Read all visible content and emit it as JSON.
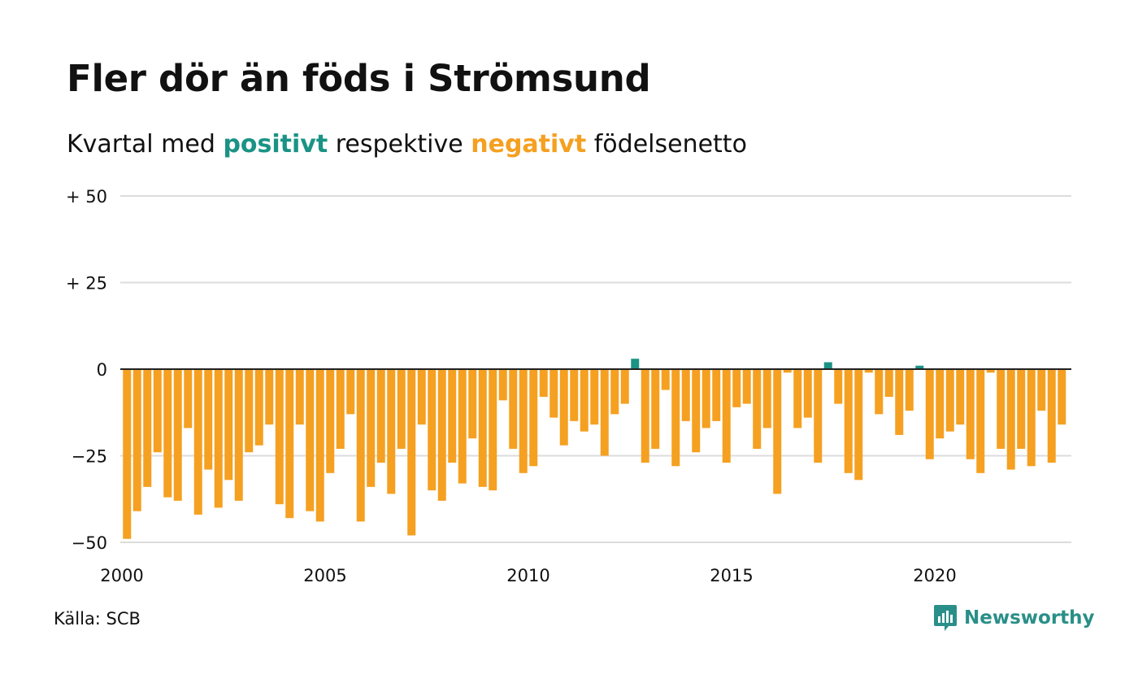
{
  "title": "Fler dör än föds i Strömsund",
  "subtitle": {
    "prefix": "Kvartal med",
    "positive": "positivt",
    "middle": "respektive",
    "negative": "negativt",
    "suffix": "födelsenetto"
  },
  "colors": {
    "positive": "#1a9385",
    "negative": "#f5a021",
    "grid": "#dcdcdc",
    "axis": "#222222",
    "text": "#111111"
  },
  "source": "Källa: SCB",
  "brand": {
    "name": "Newsworthy",
    "icon": "newsworthy-logo-icon",
    "color": "#2a8f88"
  },
  "chart_data": {
    "type": "bar",
    "title": "Fler dör än föds i Strömsund",
    "subtitle": "Kvartal med positivt respektive negativt födelsenetto",
    "ylim": [
      -50,
      50
    ],
    "y_ticks": [
      {
        "value": 50,
        "label": "+ 50"
      },
      {
        "value": 25,
        "label": "+ 25"
      },
      {
        "value": 0,
        "label": "0"
      },
      {
        "value": -25,
        "label": "−25"
      },
      {
        "value": -50,
        "label": "−50"
      }
    ],
    "x_ticks": [
      {
        "year": 2000,
        "label": "2000"
      },
      {
        "year": 2005,
        "label": "2005"
      },
      {
        "year": 2010,
        "label": "2010"
      },
      {
        "year": 2015,
        "label": "2015"
      },
      {
        "year": 2020,
        "label": "2020"
      }
    ],
    "start_year": 2000,
    "grid": true,
    "values": [
      -49,
      -41,
      -34,
      -24,
      -37,
      -38,
      -17,
      -42,
      -29,
      -40,
      -32,
      -38,
      -24,
      -22,
      -16,
      -39,
      -43,
      -16,
      -41,
      -44,
      -30,
      -23,
      -13,
      -44,
      -34,
      -27,
      -36,
      -23,
      -48,
      -16,
      -35,
      -38,
      -27,
      -33,
      -20,
      -34,
      -35,
      -9,
      -23,
      -30,
      -28,
      -8,
      -14,
      -22,
      -15,
      -18,
      -16,
      -25,
      -13,
      -10,
      3,
      -27,
      -23,
      -6,
      -28,
      -15,
      -24,
      -17,
      -15,
      -27,
      -11,
      -10,
      -23,
      -17,
      -36,
      -1,
      -17,
      -14,
      -27,
      2,
      -10,
      -30,
      -32,
      -1,
      -13,
      -8,
      -19,
      -12,
      1,
      -26,
      -20,
      -18,
      -16,
      -26,
      -30,
      -1,
      -23,
      -29,
      -23,
      -28,
      -12,
      -27,
      -16
    ]
  }
}
